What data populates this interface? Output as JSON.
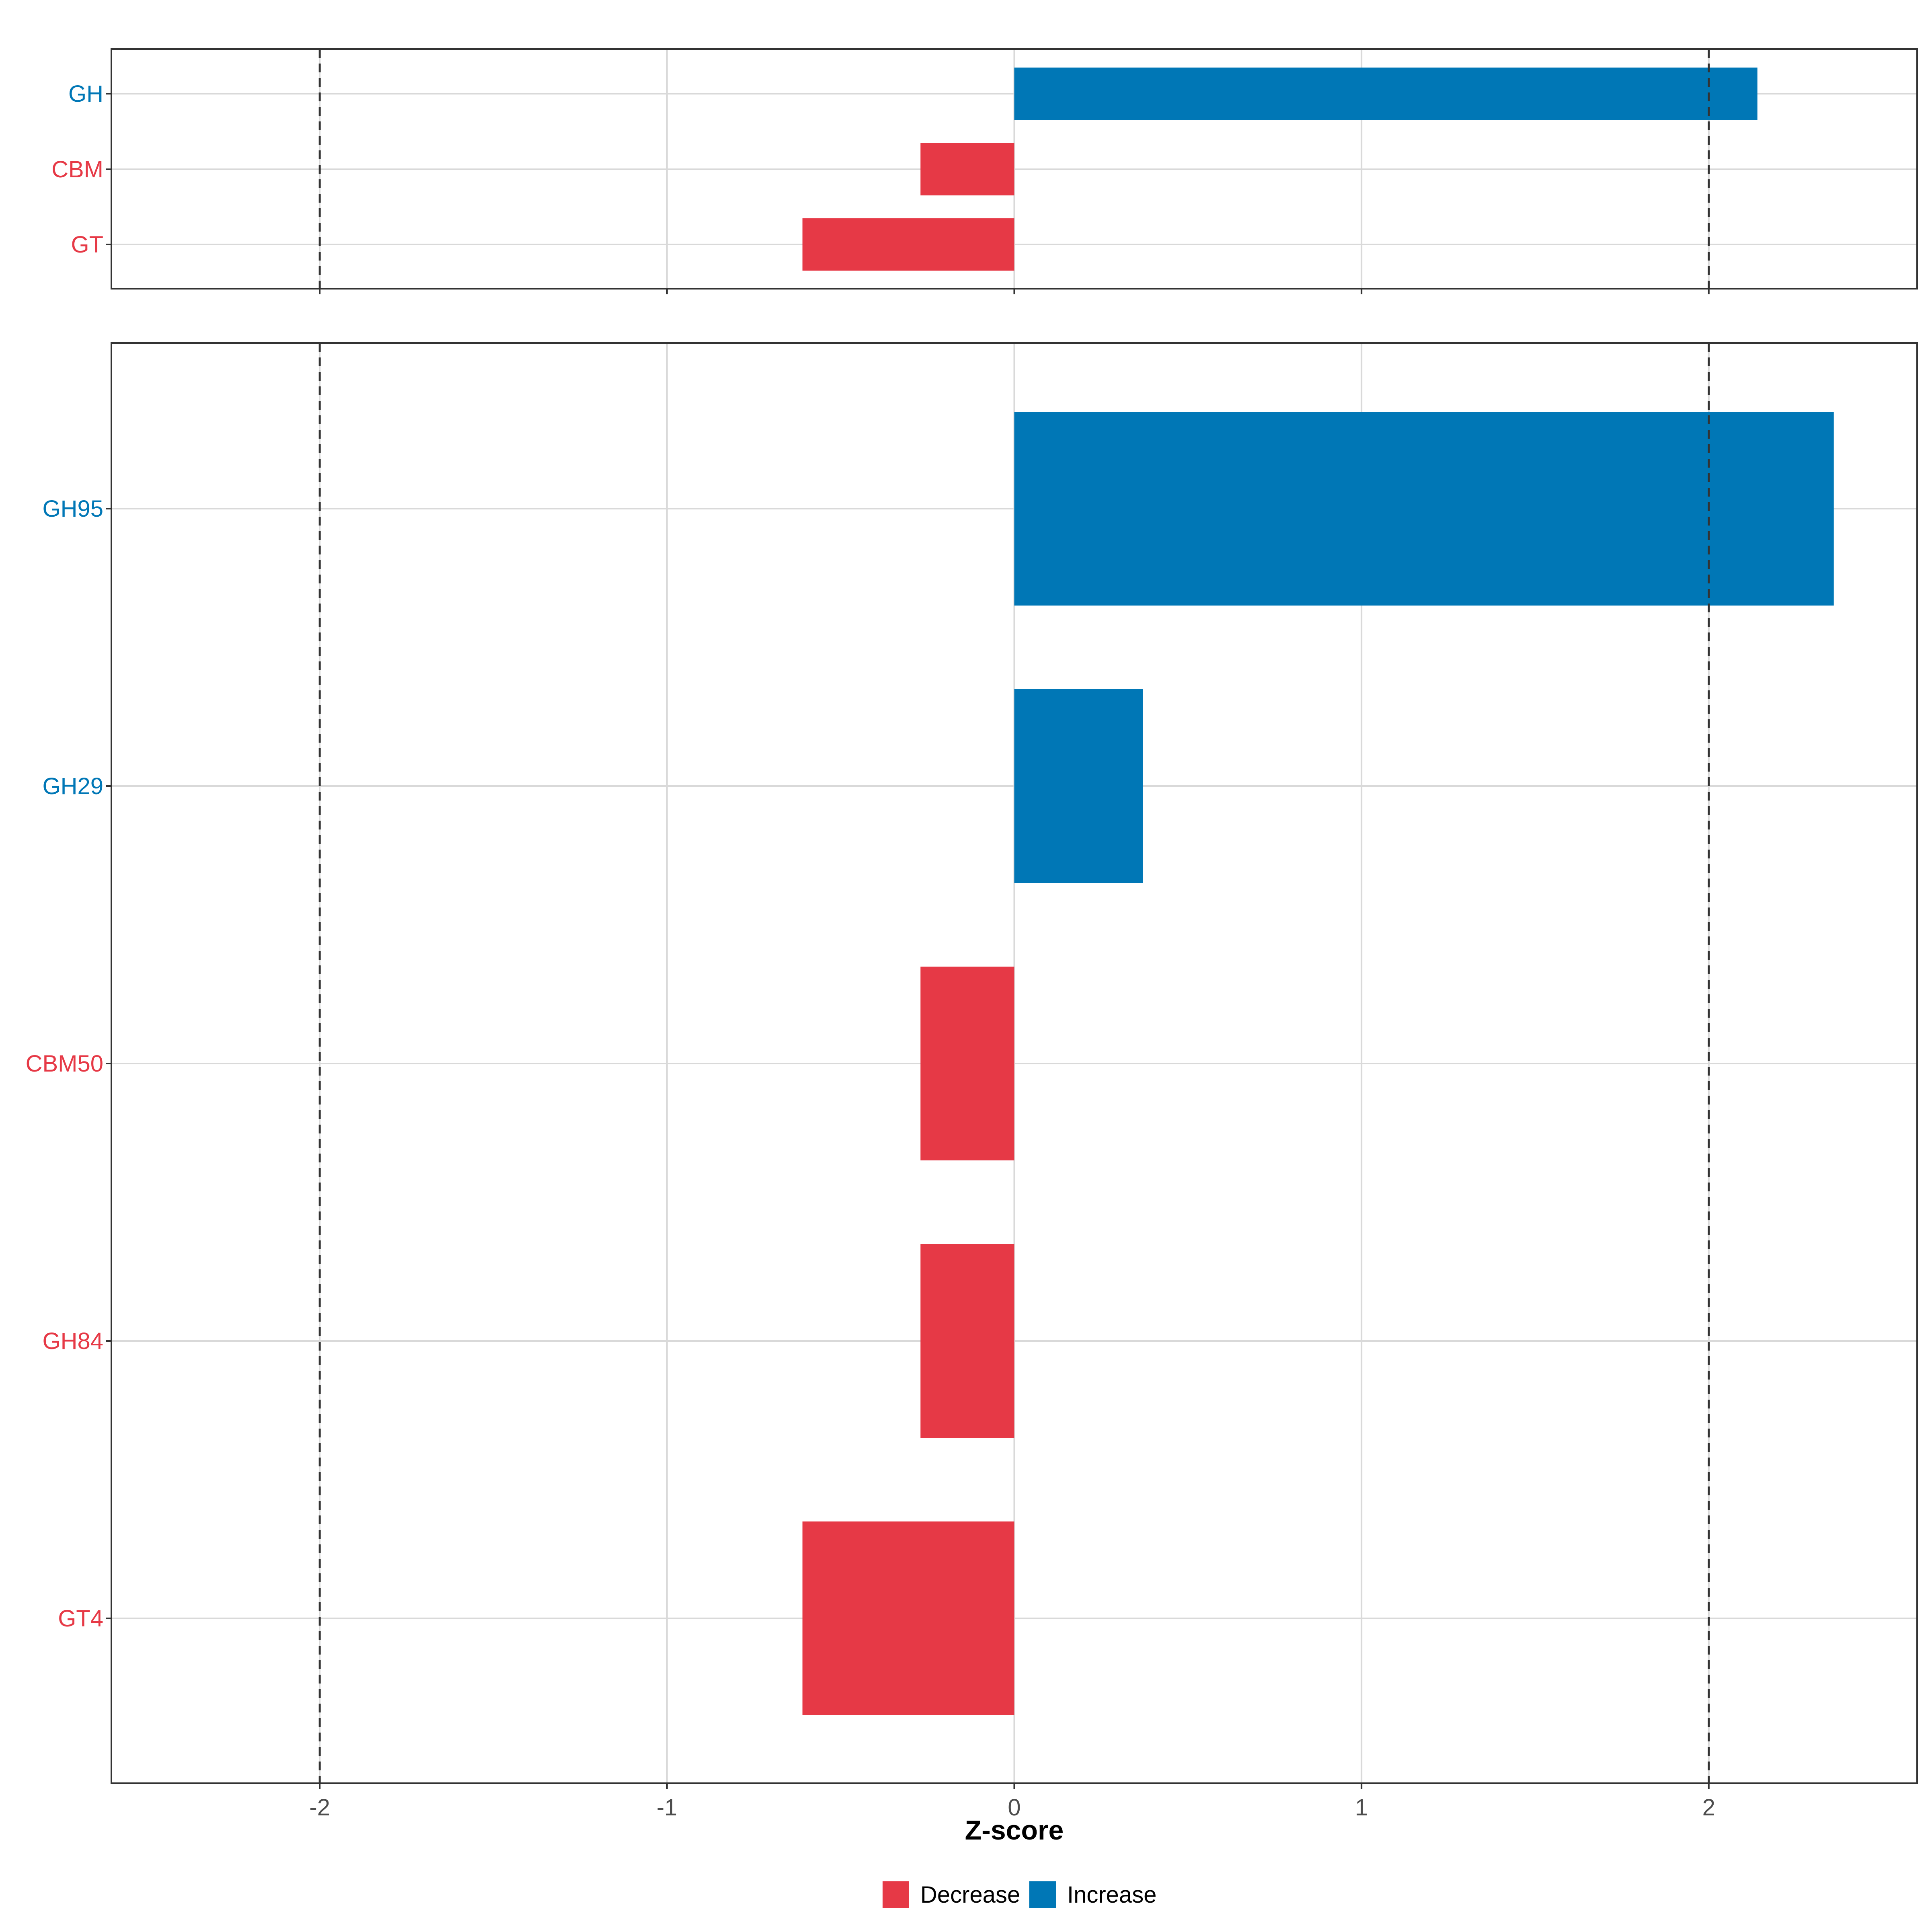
{
  "chart_data": [
    {
      "type": "bar",
      "orientation": "horizontal",
      "panel": "top",
      "categories": [
        "GH",
        "CBM",
        "GT"
      ],
      "values": [
        2.14,
        -0.27,
        -0.61
      ],
      "groups": [
        "Increase",
        "Decrease",
        "Decrease"
      ],
      "xlim": [
        -2.6,
        2.6
      ],
      "reference_lines": [
        -2,
        2
      ],
      "grid": true,
      "xticks": [
        "-2",
        "-1",
        "0",
        "1",
        "2"
      ]
    },
    {
      "type": "bar",
      "orientation": "horizontal",
      "panel": "bottom",
      "categories": [
        "GH95",
        "GH29",
        "CBM50",
        "GH84",
        "GT4"
      ],
      "values": [
        2.36,
        0.37,
        -0.27,
        -0.27,
        -0.61
      ],
      "groups": [
        "Increase",
        "Increase",
        "Decrease",
        "Decrease",
        "Decrease"
      ],
      "xlim": [
        -2.6,
        2.6
      ],
      "reference_lines": [
        -2,
        2
      ],
      "grid": true,
      "xticks": [
        "-2",
        "-1",
        "0",
        "1",
        "2"
      ],
      "xlabel": "Z-score"
    }
  ],
  "legend": {
    "placement": "bottom",
    "entries": [
      {
        "label": "Decrease",
        "color": "#E63946"
      },
      {
        "label": "Increase",
        "color": "#0077B6"
      }
    ]
  },
  "colors": {
    "Decrease": "#E63946",
    "Increase": "#0077B6"
  }
}
